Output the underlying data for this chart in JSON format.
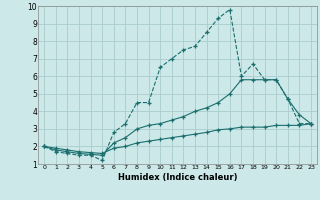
{
  "xlabel": "Humidex (Indice chaleur)",
  "xlim": [
    -0.5,
    23.5
  ],
  "ylim": [
    1,
    10
  ],
  "xticks": [
    0,
    1,
    2,
    3,
    4,
    5,
    6,
    7,
    8,
    9,
    10,
    11,
    12,
    13,
    14,
    15,
    16,
    17,
    18,
    19,
    20,
    21,
    22,
    23
  ],
  "yticks": [
    1,
    2,
    3,
    4,
    5,
    6,
    7,
    8,
    9,
    10
  ],
  "background_color": "#cce8e8",
  "grid_color": "#aacccc",
  "line_color": "#1a6e6e",
  "line1_x": [
    0,
    1,
    2,
    3,
    4,
    5,
    6,
    7,
    8,
    9,
    10,
    11,
    12,
    13,
    14,
    15,
    16,
    17,
    18,
    19,
    20,
    21,
    22,
    23
  ],
  "line1_y": [
    2.0,
    1.7,
    1.6,
    1.5,
    1.5,
    1.2,
    2.8,
    3.3,
    4.5,
    4.5,
    6.5,
    7.0,
    7.5,
    7.7,
    8.5,
    9.3,
    9.8,
    6.0,
    6.7,
    5.8,
    5.8,
    4.7,
    3.3,
    3.3
  ],
  "line2_x": [
    0,
    1,
    2,
    3,
    4,
    5,
    6,
    7,
    8,
    9,
    10,
    11,
    12,
    13,
    14,
    15,
    16,
    17,
    18,
    19,
    20,
    21,
    22,
    23
  ],
  "line2_y": [
    2.0,
    1.8,
    1.7,
    1.6,
    1.55,
    1.5,
    2.2,
    2.5,
    3.0,
    3.2,
    3.3,
    3.5,
    3.7,
    4.0,
    4.2,
    4.5,
    5.0,
    5.8,
    5.8,
    5.8,
    5.8,
    4.7,
    3.8,
    3.3
  ],
  "line3_x": [
    0,
    1,
    2,
    3,
    4,
    5,
    6,
    7,
    8,
    9,
    10,
    11,
    12,
    13,
    14,
    15,
    16,
    17,
    18,
    19,
    20,
    21,
    22,
    23
  ],
  "line3_y": [
    2.0,
    1.9,
    1.8,
    1.7,
    1.65,
    1.6,
    1.9,
    2.0,
    2.2,
    2.3,
    2.4,
    2.5,
    2.6,
    2.7,
    2.8,
    2.95,
    3.0,
    3.1,
    3.1,
    3.1,
    3.2,
    3.2,
    3.2,
    3.3
  ]
}
